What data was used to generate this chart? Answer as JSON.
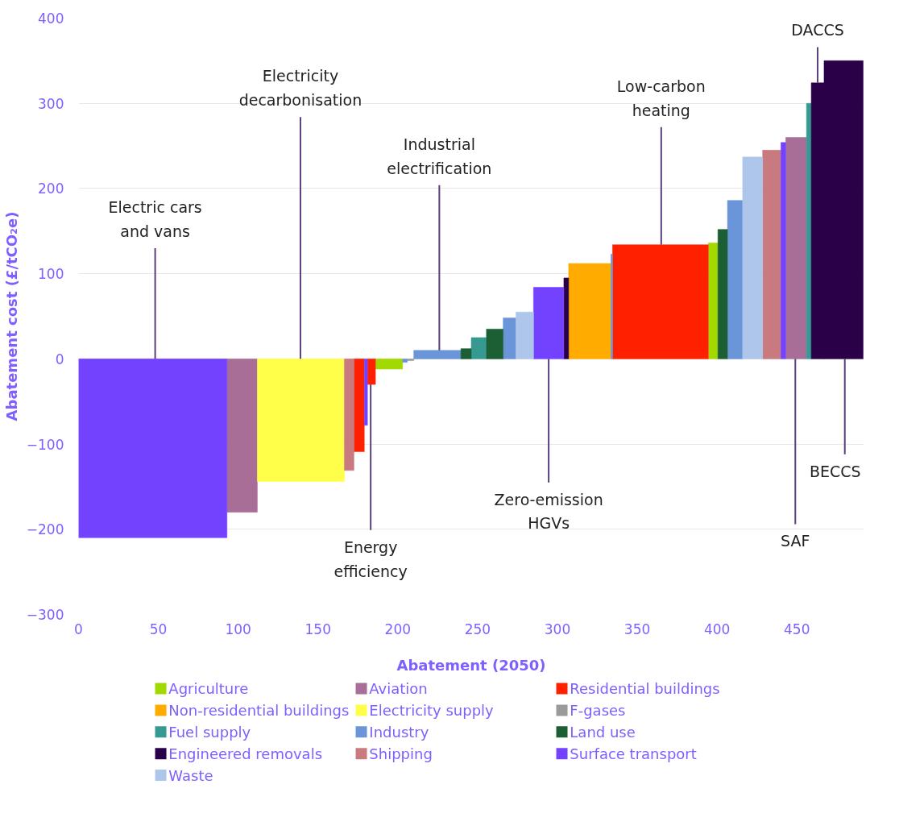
{
  "chart_data": {
    "type": "histogram",
    "xlabel": "Abatement (2050)",
    "ylabel": "Abatement cost (£/tCO₂e)",
    "bins": [
      0,
      93,
      112,
      166.5,
      172.5,
      179,
      181,
      186,
      203,
      206,
      210,
      239.5,
      246,
      255.5,
      266,
      274,
      285,
      304,
      307,
      333.5,
      334.5,
      394.5,
      400.5,
      406.5,
      416,
      428.5,
      440,
      443,
      456,
      459,
      467,
      491.5
    ],
    "series": [
      {
        "name": "Agriculture",
        "color": "#a2d900",
        "values": [
          null,
          null,
          null,
          null,
          null,
          null,
          null,
          -12,
          null,
          null,
          null,
          null,
          null,
          null,
          null,
          null,
          null,
          null,
          null,
          null,
          null,
          136,
          null,
          null,
          null,
          null,
          null,
          null,
          null,
          null,
          null
        ]
      },
      {
        "name": "Aviation",
        "color": "#a86e98",
        "values": [
          null,
          -180,
          null,
          null,
          null,
          null,
          null,
          null,
          null,
          null,
          null,
          null,
          null,
          null,
          null,
          null,
          null,
          null,
          null,
          null,
          null,
          null,
          null,
          null,
          null,
          null,
          null,
          260,
          null,
          null,
          null
        ]
      },
      {
        "name": "Residential buildings",
        "color": "#ff2000",
        "values": [
          null,
          null,
          null,
          null,
          -109,
          null,
          -30,
          null,
          null,
          null,
          null,
          null,
          null,
          null,
          null,
          null,
          null,
          null,
          null,
          null,
          134,
          null,
          null,
          null,
          null,
          null,
          null,
          null,
          null,
          null,
          null
        ]
      },
      {
        "name": "Non-residential buildings",
        "color": "#ffab00",
        "values": [
          null,
          null,
          null,
          null,
          null,
          null,
          null,
          null,
          null,
          null,
          null,
          null,
          null,
          null,
          null,
          null,
          null,
          null,
          112,
          null,
          null,
          null,
          null,
          null,
          null,
          null,
          null,
          null,
          null,
          null,
          null
        ]
      },
      {
        "name": "Electricity supply",
        "color": "#ffff4a",
        "values": [
          null,
          null,
          -144,
          null,
          null,
          null,
          null,
          null,
          null,
          null,
          null,
          null,
          null,
          null,
          null,
          null,
          null,
          null,
          null,
          null,
          null,
          null,
          null,
          null,
          null,
          null,
          null,
          null,
          null,
          null,
          null
        ]
      },
      {
        "name": "F-gases",
        "color": "#9a9a9a",
        "values": [
          null,
          null,
          null,
          null,
          null,
          null,
          null,
          null,
          null,
          -2,
          null,
          null,
          null,
          null,
          null,
          null,
          null,
          null,
          null,
          null,
          null,
          null,
          null,
          null,
          null,
          null,
          null,
          null,
          null,
          null,
          null
        ]
      },
      {
        "name": "Fuel supply",
        "color": "#369a93",
        "values": [
          null,
          null,
          null,
          null,
          null,
          null,
          null,
          null,
          null,
          null,
          null,
          null,
          25,
          null,
          null,
          null,
          null,
          null,
          null,
          null,
          null,
          null,
          null,
          null,
          null,
          null,
          null,
          null,
          300,
          null,
          null
        ]
      },
      {
        "name": "Industry",
        "color": "#6a95d8",
        "values": [
          null,
          null,
          null,
          null,
          null,
          null,
          null,
          null,
          -4,
          null,
          10,
          null,
          null,
          null,
          48,
          null,
          null,
          null,
          null,
          123,
          null,
          null,
          null,
          186,
          null,
          null,
          null,
          null,
          null,
          null,
          null
        ]
      },
      {
        "name": "Land use",
        "color": "#1c5f34",
        "values": [
          null,
          null,
          null,
          null,
          null,
          null,
          null,
          null,
          null,
          null,
          null,
          12,
          null,
          35,
          null,
          null,
          null,
          null,
          null,
          null,
          null,
          null,
          152,
          null,
          null,
          null,
          null,
          null,
          null,
          null,
          null
        ]
      },
      {
        "name": "Engineered removals",
        "color": "#2a0048",
        "values": [
          null,
          null,
          null,
          null,
          null,
          null,
          null,
          null,
          null,
          null,
          null,
          null,
          null,
          null,
          null,
          null,
          null,
          95,
          null,
          null,
          null,
          null,
          null,
          null,
          null,
          null,
          null,
          null,
          null,
          324,
          350
        ]
      },
      {
        "name": "Shipping",
        "color": "#c97a7f",
        "values": [
          null,
          null,
          null,
          -131,
          null,
          null,
          null,
          null,
          null,
          null,
          null,
          null,
          null,
          null,
          null,
          null,
          null,
          null,
          null,
          null,
          null,
          null,
          null,
          null,
          null,
          245,
          null,
          null,
          null,
          null,
          null
        ]
      },
      {
        "name": "Surface transport",
        "color": "#7342ff",
        "values": [
          -210,
          null,
          null,
          null,
          null,
          -78,
          null,
          null,
          null,
          null,
          null,
          null,
          null,
          null,
          null,
          null,
          84,
          null,
          null,
          null,
          null,
          null,
          null,
          null,
          null,
          null,
          254,
          null,
          null,
          null,
          null
        ]
      },
      {
        "name": "Waste",
        "color": "#aec6ea",
        "values": [
          null,
          null,
          null,
          null,
          null,
          null,
          null,
          null,
          null,
          null,
          null,
          null,
          null,
          null,
          null,
          55,
          null,
          null,
          null,
          null,
          null,
          null,
          null,
          null,
          237,
          null,
          null,
          null,
          null,
          null,
          null
        ]
      }
    ],
    "xlim": [
      0,
      492
    ],
    "ylim": [
      -300,
      400
    ],
    "xticks": [
      0,
      50,
      100,
      150,
      200,
      250,
      300,
      350,
      400,
      450
    ],
    "yticks": [
      -300,
      -200,
      -100,
      0,
      100,
      200,
      300,
      400
    ],
    "grid": "y",
    "legend": "bottom",
    "annotations": [
      {
        "text": "Electric cars\nand vans",
        "x": 48,
        "y": 0
      },
      {
        "text": "Electricity\ndecarbonisation",
        "x": 139,
        "y": 0
      },
      {
        "text": "Industrial\nelectrification",
        "x": 226,
        "y": 10
      },
      {
        "text": "Low-carbon\nheating",
        "x": 365,
        "y": 134
      },
      {
        "text": "DACCS",
        "x": 463,
        "y": 324
      },
      {
        "text": "Energy\nefficiency",
        "x": 183,
        "y": -30
      },
      {
        "text": "Zero-emission\nHGVs",
        "x": 294.5,
        "y": 0
      },
      {
        "text": "SAF",
        "x": 449,
        "y": 0
      },
      {
        "text": "BECCS",
        "x": 480,
        "y": 0
      }
    ]
  }
}
